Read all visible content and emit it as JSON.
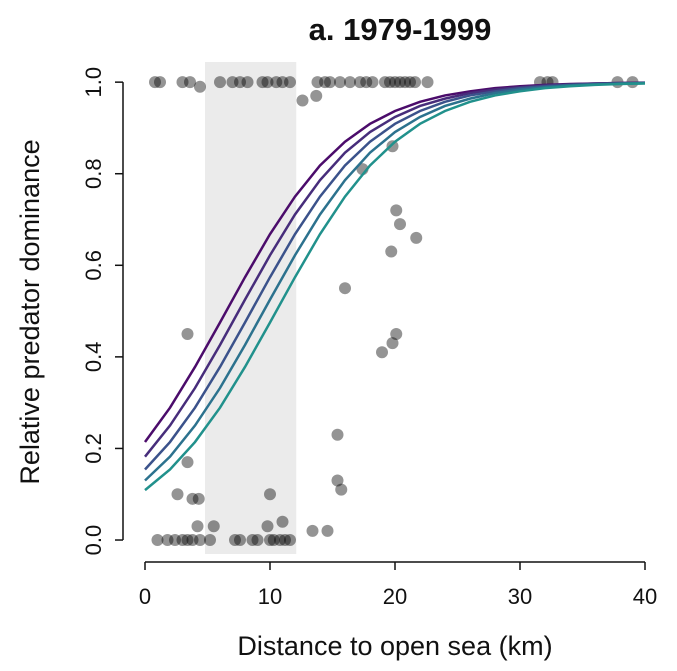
{
  "chart_data": {
    "type": "scatter",
    "title": "a. 1979-1999",
    "xlabel": "Distance to open sea (km)",
    "ylabel": "Relative predator dominance",
    "xlim": [
      -1.76,
      41.6
    ],
    "ylim": [
      -0.048,
      1.044
    ],
    "xticks": [
      0,
      10,
      20,
      30,
      40
    ],
    "yticks": [
      {
        "value": 0,
        "label": "0.0"
      },
      {
        "value": 0.2,
        "label": "0.2"
      },
      {
        "value": 0.4,
        "label": "0.4"
      },
      {
        "value": 0.6,
        "label": "0.6"
      },
      {
        "value": 0.8,
        "label": "0.8"
      },
      {
        "value": 1,
        "label": "1.0"
      }
    ],
    "shaded_range": [
      4.8,
      12.1
    ],
    "shade_color": "#ebebeb",
    "point_color": "rgba(0,0,0,0.42)",
    "points": {
      "x": [
        0.8,
        1.2,
        3.0,
        3.6,
        4.4,
        6.0,
        7.0,
        7.6,
        8.2,
        9.4,
        9.8,
        10.5,
        11.0,
        11.6,
        13.8,
        14.4,
        14.8,
        15.6,
        16.4,
        17.2,
        17.7,
        18.2,
        19.2,
        19.6,
        20,
        20.4,
        20.8,
        21.2,
        21.6,
        22.6,
        31.6,
        32.2,
        32.6,
        37.8,
        39.0,
        12.6,
        13.7,
        17.4,
        19.8,
        20.1,
        20.4,
        21.7,
        19.7,
        16.0,
        20.1,
        19.8,
        18.96,
        3.4,
        15.4,
        15.4,
        15.7,
        3.4,
        2.6,
        3.8,
        4.3,
        10.0,
        4.2,
        5.5,
        9.8,
        11.0,
        13.4,
        14.6,
        1.0,
        1.8,
        2.4,
        3.0,
        3.4,
        3.8,
        4.4,
        5.2,
        7.2,
        7.6,
        8.6,
        9.0,
        10.0,
        10.3,
        10.8,
        11.2,
        11.6
      ],
      "y": [
        1,
        1,
        1,
        1,
        0.99,
        1,
        1,
        1,
        1,
        1,
        1,
        1,
        1,
        1,
        1,
        1,
        1,
        1,
        1,
        1,
        1,
        1,
        1,
        1,
        1,
        1,
        1,
        1,
        1,
        1,
        1,
        1,
        1,
        1,
        1,
        0.96,
        0.97,
        0.81,
        0.86,
        0.72,
        0.69,
        0.66,
        0.63,
        0.55,
        0.45,
        0.43,
        0.41,
        0.45,
        0.23,
        0.13,
        0.11,
        0.17,
        0.1,
        0.09,
        0.09,
        0.1,
        0.03,
        0.03,
        0.03,
        0.04,
        0.02,
        0.02,
        0,
        0,
        0,
        0,
        0,
        0,
        0,
        0,
        0,
        0,
        0,
        0,
        0,
        0,
        0,
        0,
        0
      ]
    },
    "curves": {
      "x": [
        0,
        2,
        4,
        6,
        8,
        10,
        12,
        14,
        16,
        18,
        20,
        22,
        24,
        26,
        28,
        30,
        32,
        34,
        36,
        38,
        40
      ],
      "series": [
        {
          "color": "#4b0c6b",
          "values": [
            0.214,
            0.289,
            0.378,
            0.475,
            0.574,
            0.668,
            0.75,
            0.818,
            0.87,
            0.909,
            0.937,
            0.957,
            0.971,
            0.98,
            0.987,
            0.991,
            0.994,
            0.996,
            0.997,
            0.998,
            0.999
          ]
        },
        {
          "color": "#472d7b",
          "values": [
            0.182,
            0.25,
            0.332,
            0.426,
            0.525,
            0.622,
            0.711,
            0.786,
            0.846,
            0.891,
            0.924,
            0.948,
            0.964,
            0.976,
            0.984,
            0.989,
            0.993,
            0.995,
            0.997,
            0.998,
            0.998
          ]
        },
        {
          "color": "#3b528b",
          "values": [
            0.154,
            0.214,
            0.289,
            0.378,
            0.475,
            0.574,
            0.668,
            0.75,
            0.818,
            0.87,
            0.909,
            0.937,
            0.957,
            0.971,
            0.98,
            0.987,
            0.991,
            0.994,
            0.996,
            0.997,
            0.998
          ]
        },
        {
          "color": "#2c728e",
          "values": [
            0.13,
            0.182,
            0.25,
            0.332,
            0.426,
            0.525,
            0.622,
            0.711,
            0.786,
            0.846,
            0.891,
            0.924,
            0.948,
            0.964,
            0.976,
            0.984,
            0.989,
            0.993,
            0.995,
            0.997,
            0.998
          ]
        },
        {
          "color": "#21918c",
          "values": [
            0.109,
            0.154,
            0.214,
            0.289,
            0.378,
            0.475,
            0.574,
            0.668,
            0.75,
            0.818,
            0.87,
            0.909,
            0.937,
            0.957,
            0.971,
            0.98,
            0.987,
            0.991,
            0.994,
            0.996,
            0.997
          ]
        }
      ]
    }
  }
}
